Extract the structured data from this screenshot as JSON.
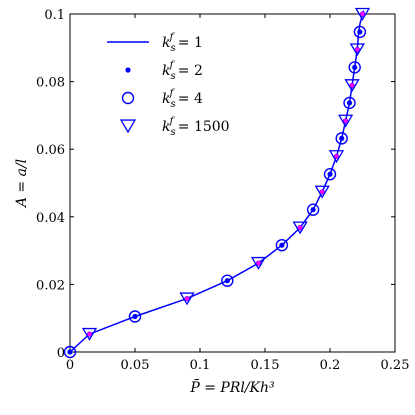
{
  "chart_data": {
    "type": "line",
    "xlabel": "P̄ = PRl/Kh³",
    "ylabel": "A = a/l",
    "xlim": [
      0,
      0.25
    ],
    "ylim": [
      0,
      0.1
    ],
    "x_ticks": [
      "0",
      "0.05",
      "0.1",
      "0.15",
      "0.2",
      "0.25"
    ],
    "y_ticks": [
      "0",
      "0.02",
      "0.04",
      "0.06",
      "0.08",
      "0.1"
    ],
    "x_tick_values": [
      0,
      0.05,
      0.1,
      0.15,
      0.2,
      0.25
    ],
    "y_tick_values": [
      0,
      0.02,
      0.04,
      0.06,
      0.08,
      0.1
    ],
    "grid": false,
    "legend_position": "top-left",
    "colors": {
      "line": "#0000ff",
      "triangle_fill": "#ff00ff",
      "axis": "#000000"
    },
    "series": [
      {
        "name": "k_s^f = 1",
        "marker": "line",
        "x": [
          0,
          0.015,
          0.05,
          0.09,
          0.121,
          0.145,
          0.163,
          0.177,
          0.187,
          0.194,
          0.2,
          0.205,
          0.209,
          0.212,
          0.215,
          0.217,
          0.219,
          0.221,
          0.222,
          0.223,
          0.224,
          0.225,
          0.226
        ],
        "y": [
          0,
          0.0053,
          0.0105,
          0.0158,
          0.0211,
          0.0263,
          0.0316,
          0.0368,
          0.0421,
          0.0474,
          0.0526,
          0.0579,
          0.0632,
          0.0684,
          0.0737,
          0.0789,
          0.0842,
          0.0895,
          0.0947,
          0.097,
          0.0985,
          0.1,
          0.101
        ]
      },
      {
        "name": "k_s^f = 2",
        "marker": "dot",
        "x": [
          0,
          0.015,
          0.05,
          0.09,
          0.121,
          0.145,
          0.163,
          0.177,
          0.187,
          0.194,
          0.2,
          0.205,
          0.209,
          0.212,
          0.215,
          0.217,
          0.219,
          0.221,
          0.223,
          0.225
        ],
        "y": [
          0,
          0.0053,
          0.0105,
          0.0158,
          0.0211,
          0.0263,
          0.0316,
          0.0368,
          0.0421,
          0.0474,
          0.0526,
          0.0579,
          0.0632,
          0.0684,
          0.0737,
          0.0789,
          0.0842,
          0.0895,
          0.0947,
          0.1
        ]
      },
      {
        "name": "k_s^f = 4",
        "marker": "circle",
        "x": [
          0,
          0.05,
          0.121,
          0.163,
          0.187,
          0.2,
          0.209,
          0.215,
          0.219,
          0.223
        ],
        "y": [
          0,
          0.0105,
          0.0211,
          0.0316,
          0.0421,
          0.0526,
          0.0632,
          0.0737,
          0.0842,
          0.0947
        ]
      },
      {
        "name": "k_s^f = 1500",
        "marker": "triangle",
        "x": [
          0.015,
          0.09,
          0.145,
          0.177,
          0.194,
          0.205,
          0.212,
          0.217,
          0.221,
          0.225
        ],
        "y": [
          0.0053,
          0.0158,
          0.0263,
          0.0368,
          0.0474,
          0.0579,
          0.0684,
          0.0789,
          0.0895,
          0.1
        ]
      }
    ],
    "legend": {
      "entries": [
        {
          "prefix": "k",
          "sub": "s",
          "sup": "f",
          "value": " = 1",
          "marker": "line"
        },
        {
          "prefix": "k",
          "sub": "s",
          "sup": "f",
          "value": " = 2",
          "marker": "dot"
        },
        {
          "prefix": "k",
          "sub": "s",
          "sup": "f",
          "value": " = 4",
          "marker": "circle"
        },
        {
          "prefix": "k",
          "sub": "s",
          "sup": "f",
          "value": " = 1500",
          "marker": "triangle"
        }
      ]
    }
  }
}
